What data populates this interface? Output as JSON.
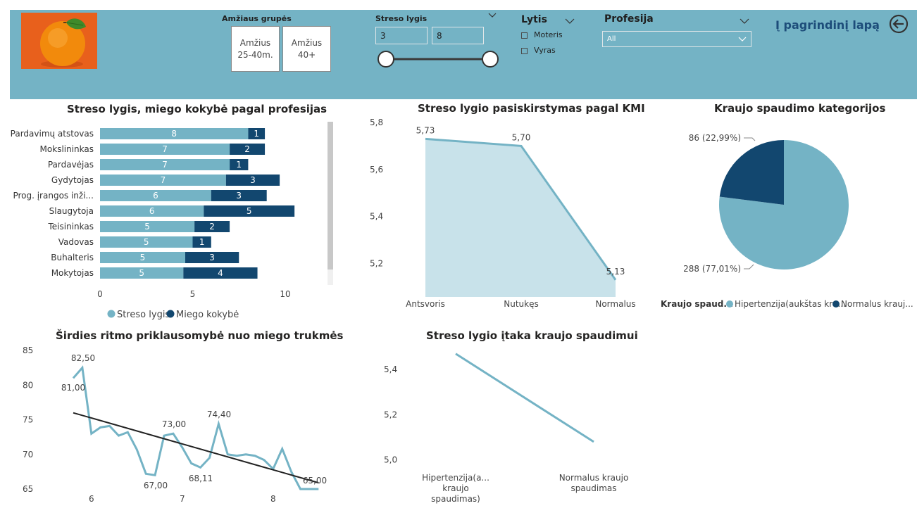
{
  "colors": {
    "header_bg": "#74b3c5",
    "light_series": "#74b3c5",
    "dark_series": "#12476f",
    "area_fill": "#c8e2ea",
    "accent_text": "#1d4d7a"
  },
  "header": {
    "age_label": "Amžiaus grupės",
    "age_buttons": [
      "Amžius 25-40m.",
      "Amžius 40+"
    ],
    "stress_label": "Streso lygis",
    "stress_min": "3",
    "stress_max": "8",
    "gender_label": "Lytis",
    "gender_options": [
      "Moteris",
      "Vyras"
    ],
    "profession_label": "Profesija",
    "profession_value": "All",
    "home_link": "Į pagrindinį lapą",
    "back_icon": "back-arrow-icon"
  },
  "chart_data": [
    {
      "type": "bar",
      "title": "Streso lygis, miego kokybė pagal profesijas",
      "categories": [
        "Pardavimų atstovas",
        "Mokslininkas",
        "Pardavėjas",
        "Gydytojas",
        "Prog. įrangos inži...",
        "Slaugytoja",
        "Teisininkas",
        "Vadovas",
        "Buhalteris",
        "Mokytojas"
      ],
      "series": [
        {
          "name": "Streso lygis",
          "values": [
            8,
            7,
            7,
            7,
            6,
            6,
            5,
            5,
            5,
            5
          ],
          "bar_lengths": [
            8,
            7,
            7,
            6.8,
            6,
            5.6,
            5.1,
            5.0,
            4.6,
            4.5
          ]
        },
        {
          "name": "Miego kokybė",
          "values": [
            1,
            2,
            1,
            3,
            3,
            5,
            2,
            1,
            3,
            4
          ],
          "bar_lengths": [
            0.9,
            1.9,
            1.0,
            2.9,
            3.0,
            4.9,
            1.9,
            1.0,
            2.9,
            4.0
          ]
        }
      ],
      "xticks": [
        "0",
        "5",
        "10"
      ],
      "xlim": [
        0,
        10.5
      ],
      "stacked": true,
      "legend": "bottom"
    },
    {
      "type": "area",
      "title": "Streso lygio pasiskirstymas pagal KMI",
      "categories": [
        "Antsvoris",
        "Nutukęs",
        "Normalus"
      ],
      "values": [
        5.73,
        5.7,
        5.13
      ],
      "labels": [
        "5,73",
        "5,70",
        "5,13"
      ],
      "yticks": [
        "5,8",
        "5,6",
        "5,4",
        "5,2"
      ],
      "ylim": [
        5.1,
        5.8
      ]
    },
    {
      "type": "pie",
      "title": "Kraujo spaudimo kategorijos",
      "slices": [
        {
          "name": "Hipertenzija(aukštas kra...",
          "value": 288,
          "label": "288 (77,01%)"
        },
        {
          "name": "Normalus krauj...",
          "value": 86,
          "label": "86 (22,99%)"
        }
      ],
      "legend_title": "Kraujo spaud...",
      "legend": "bottom"
    },
    {
      "type": "line",
      "title": "Širdies ritmo priklausomybė nuo miego trukmės",
      "x": [
        5.8,
        5.9,
        6.0,
        6.1,
        6.2,
        6.3,
        6.4,
        6.5,
        6.6,
        6.7,
        6.8,
        6.9,
        7.0,
        7.1,
        7.2,
        7.3,
        7.4,
        7.5,
        7.6,
        7.7,
        7.8,
        7.9,
        8.0,
        8.1,
        8.2,
        8.3,
        8.4,
        8.5
      ],
      "y": [
        81.0,
        82.5,
        73.0,
        73.9,
        74.1,
        72.7,
        73.2,
        70.7,
        67.2,
        67.0,
        72.7,
        73.0,
        71.0,
        68.7,
        68.11,
        69.5,
        74.4,
        70.0,
        69.8,
        70.0,
        69.8,
        69.2,
        67.9,
        70.8,
        67.5,
        65.0,
        65.0,
        65.0
      ],
      "trend": {
        "x": [
          5.8,
          8.5
        ],
        "y": [
          76.0,
          65.9
        ]
      },
      "labels": [
        "82,50",
        "81,00",
        "73,00",
        "67,00",
        "68,11",
        "74,40",
        "65,00"
      ],
      "yticks": [
        "85",
        "80",
        "75",
        "70",
        "65"
      ],
      "xticks": [
        "6",
        "7",
        "8"
      ],
      "ylim": [
        65,
        85
      ],
      "xlim": [
        5.8,
        8.5
      ]
    },
    {
      "type": "line",
      "title": "Streso lygio įtaka kraujo spaudimui",
      "categories": [
        "Hipertenzija(a... kraujo spaudimas)",
        "Normalus kraujo spaudimas"
      ],
      "values": [
        5.47,
        5.08
      ],
      "yticks": [
        "5,4",
        "5,2",
        "5,0"
      ],
      "ylim": [
        4.98,
        5.5
      ]
    }
  ]
}
